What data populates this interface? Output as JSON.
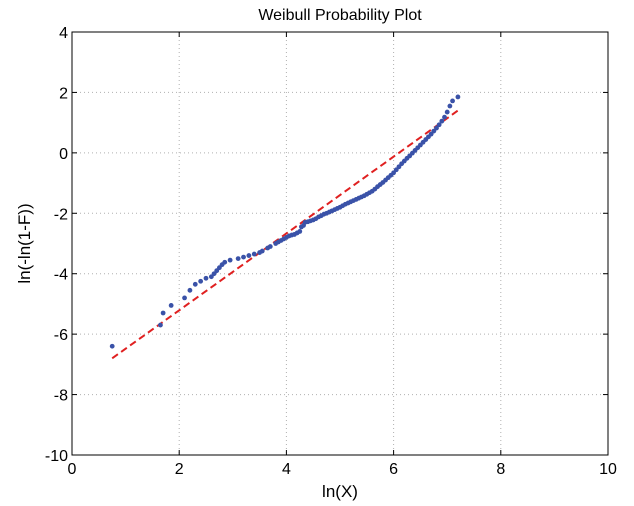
{
  "chart_data": {
    "type": "scatter",
    "title": "Weibull Probability Plot",
    "xlabel": "ln(X)",
    "ylabel": "ln(-ln(1-F))",
    "xlim": [
      0,
      10
    ],
    "ylim": [
      -10,
      4
    ],
    "xticks": [
      "0",
      "2",
      "4",
      "6",
      "8",
      "10"
    ],
    "yticks": [
      "4",
      "2",
      "0",
      "-2",
      "-4",
      "-6",
      "-8",
      "-10"
    ],
    "grid": true,
    "colors": {
      "points": "#3a52a8",
      "fit_line": "#e02020",
      "grid": "#b0b0b0",
      "axes": "#000000"
    },
    "series": [
      {
        "kind": "points",
        "points": [
          [
            0.75,
            -6.4
          ],
          [
            1.65,
            -5.7
          ],
          [
            1.7,
            -5.3
          ],
          [
            1.85,
            -5.05
          ],
          [
            2.1,
            -4.8
          ],
          [
            2.2,
            -4.55
          ],
          [
            2.3,
            -4.35
          ],
          [
            2.4,
            -4.25
          ],
          [
            2.5,
            -4.15
          ],
          [
            2.6,
            -4.1
          ],
          [
            2.65,
            -4.0
          ],
          [
            2.7,
            -3.9
          ],
          [
            2.75,
            -3.8
          ],
          [
            2.8,
            -3.7
          ],
          [
            2.85,
            -3.62
          ],
          [
            2.95,
            -3.55
          ],
          [
            3.1,
            -3.5
          ],
          [
            3.2,
            -3.45
          ],
          [
            3.3,
            -3.4
          ],
          [
            3.4,
            -3.35
          ],
          [
            3.5,
            -3.3
          ],
          [
            3.55,
            -3.25
          ],
          [
            3.65,
            -3.15
          ],
          [
            3.7,
            -3.1
          ],
          [
            3.8,
            -3.0
          ],
          [
            3.85,
            -2.95
          ],
          [
            3.9,
            -2.9
          ],
          [
            3.95,
            -2.85
          ],
          [
            4.0,
            -2.8
          ],
          [
            4.05,
            -2.75
          ],
          [
            4.1,
            -2.72
          ],
          [
            4.15,
            -2.7
          ],
          [
            4.2,
            -2.65
          ],
          [
            4.25,
            -2.6
          ],
          [
            4.28,
            -2.45
          ],
          [
            4.32,
            -2.4
          ],
          [
            4.35,
            -2.3
          ],
          [
            4.4,
            -2.28
          ],
          [
            4.45,
            -2.25
          ],
          [
            4.5,
            -2.22
          ],
          [
            4.55,
            -2.18
          ],
          [
            4.6,
            -2.12
          ],
          [
            4.65,
            -2.08
          ],
          [
            4.7,
            -2.03
          ],
          [
            4.75,
            -2.0
          ],
          [
            4.8,
            -1.96
          ],
          [
            4.85,
            -1.92
          ],
          [
            4.9,
            -1.88
          ],
          [
            4.95,
            -1.84
          ],
          [
            5.0,
            -1.8
          ],
          [
            5.05,
            -1.75
          ],
          [
            5.1,
            -1.7
          ],
          [
            5.15,
            -1.66
          ],
          [
            5.2,
            -1.62
          ],
          [
            5.25,
            -1.58
          ],
          [
            5.3,
            -1.54
          ],
          [
            5.35,
            -1.5
          ],
          [
            5.4,
            -1.46
          ],
          [
            5.45,
            -1.42
          ],
          [
            5.5,
            -1.37
          ],
          [
            5.55,
            -1.32
          ],
          [
            5.6,
            -1.27
          ],
          [
            5.65,
            -1.2
          ],
          [
            5.7,
            -1.12
          ],
          [
            5.75,
            -1.05
          ],
          [
            5.8,
            -0.98
          ],
          [
            5.85,
            -0.9
          ],
          [
            5.9,
            -0.82
          ],
          [
            5.95,
            -0.74
          ],
          [
            6.0,
            -0.66
          ],
          [
            6.05,
            -0.56
          ],
          [
            6.1,
            -0.46
          ],
          [
            6.15,
            -0.36
          ],
          [
            6.2,
            -0.27
          ],
          [
            6.25,
            -0.18
          ],
          [
            6.3,
            -0.1
          ],
          [
            6.35,
            -0.01
          ],
          [
            6.4,
            0.08
          ],
          [
            6.45,
            0.17
          ],
          [
            6.5,
            0.26
          ],
          [
            6.55,
            0.35
          ],
          [
            6.6,
            0.44
          ],
          [
            6.65,
            0.53
          ],
          [
            6.7,
            0.62
          ],
          [
            6.75,
            0.72
          ],
          [
            6.8,
            0.82
          ],
          [
            6.85,
            0.93
          ],
          [
            6.9,
            1.05
          ],
          [
            6.95,
            1.18
          ],
          [
            7.0,
            1.35
          ],
          [
            7.05,
            1.55
          ],
          [
            7.1,
            1.72
          ],
          [
            7.2,
            1.85
          ]
        ]
      },
      {
        "kind": "fit_line",
        "points": [
          [
            0.75,
            -6.8
          ],
          [
            7.2,
            1.4
          ]
        ]
      }
    ]
  }
}
